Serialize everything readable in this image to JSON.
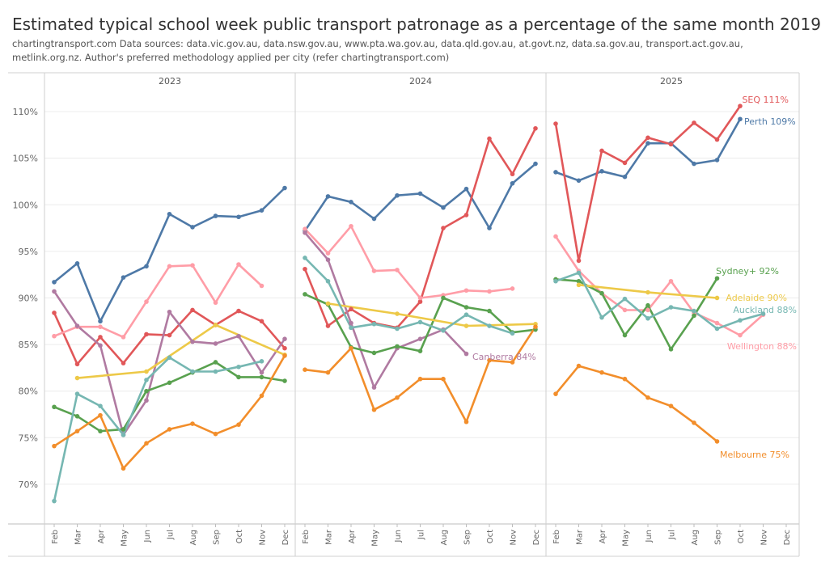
{
  "title": "Estimated typical school week public transport patronage as a percentage of the same month 2019",
  "subtitle": "chartingtransport.com  Data sources: data.vic.gov.au, data.nsw.gov.au, www.pta.wa.gov.au, data.qld.gov.au, at.govt.nz, data.sa.gov.au, transport.act.gov.au, metlink.org.nz. Author's preferred methodology applied per city (refer chartingtransport.com)",
  "chart_data": {
    "type": "line",
    "panels": [
      "2023",
      "2024",
      "2025"
    ],
    "months": [
      "Feb",
      "Mar",
      "Apr",
      "May",
      "Jun",
      "Jul",
      "Aug",
      "Sep",
      "Oct",
      "Nov",
      "Dec"
    ],
    "y_ticks": [
      70,
      75,
      80,
      85,
      90,
      95,
      100,
      105,
      110
    ],
    "ylim": [
      66,
      112
    ],
    "y_tick_suffix": "%",
    "grid": true,
    "series": [
      {
        "name": "Perth",
        "end_label": "Perth 109%",
        "color": "#4e79a7",
        "values": [
          [
            91.7,
            93.7,
            87.5,
            92.2,
            93.4,
            99,
            97.6,
            98.8,
            98.7,
            99.4,
            101.8
          ],
          [
            97.2,
            100.9,
            100.3,
            98.5,
            101,
            101.2,
            99.7,
            101.7,
            97.5,
            102.3,
            104.4
          ],
          [
            103.5,
            102.6,
            103.6,
            103,
            106.6,
            106.6,
            104.4,
            104.8,
            109.2,
            null,
            null
          ]
        ]
      },
      {
        "name": "SEQ",
        "end_label": "SEQ 111%",
        "color": "#e15759",
        "values": [
          [
            88.4,
            82.9,
            85.8,
            83,
            86.1,
            86,
            88.7,
            87.1,
            88.6,
            87.5,
            84.6
          ],
          [
            93.1,
            87,
            88.8,
            87.3,
            86.8,
            89.6,
            97.5,
            98.9,
            107.1,
            103.3,
            108.2
          ],
          [
            108.7,
            94,
            105.8,
            104.5,
            107.2,
            106.5,
            108.8,
            107,
            110.6,
            null,
            null
          ]
        ]
      },
      {
        "name": "Wellington",
        "end_label": "Wellington 88%",
        "color": "#ff9da7",
        "values": [
          [
            85.9,
            86.9,
            86.9,
            85.8,
            89.6,
            93.4,
            93.5,
            89.5,
            93.6,
            91.3,
            null
          ],
          [
            97.4,
            94.8,
            97.7,
            92.9,
            93,
            90,
            90.3,
            90.8,
            90.7,
            91,
            null
          ],
          [
            96.6,
            92.9,
            90.5,
            88.7,
            88.7,
            91.8,
            88.4,
            87.3,
            86,
            88.2,
            null
          ]
        ]
      },
      {
        "name": "Canberra",
        "end_label": "Canberra 84%",
        "color": "#b07aa1",
        "values": [
          [
            90.7,
            87,
            84.9,
            75.3,
            79,
            88.5,
            85.3,
            85.1,
            85.9,
            82,
            85.6
          ],
          [
            97,
            94.1,
            87.3,
            80.4,
            84.6,
            85.6,
            86.6,
            84,
            null,
            null,
            null
          ],
          [
            null,
            null,
            null,
            null,
            null,
            null,
            null,
            null,
            null,
            null,
            null
          ]
        ]
      },
      {
        "name": "Sydney+",
        "end_label": "Sydney+ 92%",
        "color": "#59a14f",
        "values": [
          [
            78.3,
            77.3,
            75.7,
            75.9,
            80,
            80.9,
            82,
            83.1,
            81.5,
            81.5,
            81.1
          ],
          [
            90.4,
            89.3,
            84.7,
            84.1,
            84.8,
            84.3,
            90,
            89,
            88.6,
            86.3,
            86.6
          ],
          [
            92,
            91.8,
            90.5,
            86,
            89.2,
            84.5,
            88.1,
            92.1,
            null,
            null,
            null
          ]
        ]
      },
      {
        "name": "Adelaide",
        "end_label": "Adelaide 90%",
        "color": "#edc948",
        "values": [
          [
            null,
            81.4,
            null,
            null,
            82.1,
            null,
            null,
            87.1,
            null,
            null,
            83.9
          ],
          [
            null,
            89.4,
            null,
            null,
            88.3,
            null,
            null,
            87,
            null,
            null,
            87.2
          ],
          [
            null,
            91.4,
            null,
            null,
            90.6,
            null,
            null,
            90,
            null,
            null,
            null
          ]
        ]
      },
      {
        "name": "Auckland",
        "end_label": "Auckland 88%",
        "color": "#76b7b2",
        "values": [
          [
            68.2,
            79.7,
            78.4,
            75.3,
            81.2,
            83.6,
            82.1,
            82.1,
            82.6,
            83.2,
            null
          ],
          [
            94.3,
            91.8,
            86.8,
            87.2,
            86.7,
            87.4,
            86.5,
            88.2,
            87,
            86.2,
            null
          ],
          [
            91.8,
            92.7,
            87.9,
            89.9,
            87.8,
            89,
            88.6,
            86.7,
            87.6,
            88.3,
            null
          ]
        ]
      },
      {
        "name": "Melbourne",
        "end_label": "Melbourne 75%",
        "color": "#f28e2b",
        "values": [
          [
            74.1,
            75.7,
            77.4,
            71.7,
            74.4,
            75.9,
            76.5,
            75.4,
            76.4,
            79.5,
            83.8
          ],
          [
            82.3,
            82,
            84.6,
            78,
            79.3,
            81.3,
            81.3,
            76.7,
            83.3,
            83.1,
            86.9
          ],
          [
            79.7,
            82.7,
            82,
            81.3,
            79.3,
            78.4,
            76.6,
            74.6,
            null,
            null,
            null
          ]
        ]
      }
    ]
  }
}
